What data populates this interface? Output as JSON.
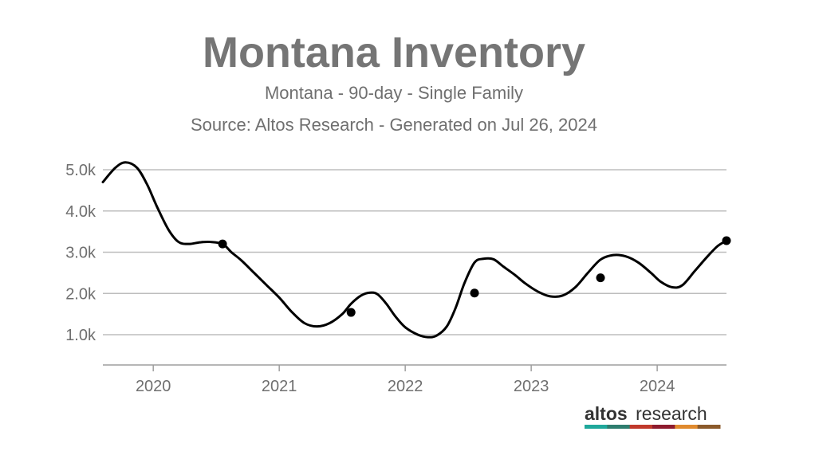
{
  "chart_data": {
    "type": "line",
    "title": "Montana Inventory",
    "subtitle": "Montana - 90-day - Single Family",
    "source": "Source: Altos Research - Generated on Jul 26, 2024",
    "xlabel": "",
    "ylabel": "",
    "x_ticks": [
      "2020",
      "2021",
      "2022",
      "2023",
      "2024"
    ],
    "y_ticks": [
      "1.0k",
      "2.0k",
      "3.0k",
      "4.0k",
      "5.0k"
    ],
    "y_tick_values": [
      1000,
      2000,
      3000,
      4000,
      5000
    ],
    "xlim": [
      2019.6,
      2024.55
    ],
    "ylim": [
      300,
      5400
    ],
    "grid": "horizontal",
    "series": [
      {
        "x": [
          2019.6,
          2019.7,
          2019.78,
          2019.87,
          2019.95,
          2020.03,
          2020.12,
          2020.2,
          2020.28,
          2020.37,
          2020.45,
          2020.55,
          2020.62,
          2020.7,
          2020.8,
          2020.9,
          2021.0,
          2021.1,
          2021.2,
          2021.3,
          2021.4,
          2021.5,
          2021.57,
          2021.65,
          2021.72,
          2021.78,
          2021.85,
          2021.92,
          2022.0,
          2022.1,
          2022.18,
          2022.25,
          2022.33,
          2022.4,
          2022.47,
          2022.55,
          2022.62,
          2022.7,
          2022.78,
          2022.87,
          2022.95,
          2023.05,
          2023.15,
          2023.25,
          2023.35,
          2023.45,
          2023.55,
          2023.65,
          2023.75,
          2023.85,
          2023.95,
          2024.03,
          2024.12,
          2024.2,
          2024.3,
          2024.4,
          2024.48,
          2024.55
        ],
        "y": [
          4700,
          5050,
          5180,
          5050,
          4650,
          4100,
          3550,
          3250,
          3200,
          3240,
          3250,
          3200,
          3000,
          2800,
          2500,
          2200,
          1900,
          1550,
          1280,
          1200,
          1280,
          1500,
          1750,
          1950,
          2020,
          1980,
          1750,
          1450,
          1180,
          1000,
          940,
          980,
          1200,
          1650,
          2250,
          2750,
          2840,
          2830,
          2650,
          2450,
          2250,
          2050,
          1930,
          1950,
          2150,
          2500,
          2820,
          2930,
          2900,
          2750,
          2500,
          2280,
          2150,
          2200,
          2550,
          2900,
          3150,
          3280
        ]
      }
    ],
    "markers": {
      "x": [
        2020.55,
        2021.57,
        2022.55,
        2023.55,
        2024.55
      ],
      "y": [
        3200,
        1540,
        2010,
        2380,
        3280
      ]
    }
  },
  "logo": {
    "text_bold": "altos",
    "text_regular": "research",
    "stripe_colors": [
      "#1fa89b",
      "#2e7d6e",
      "#c0392b",
      "#8e1b2e",
      "#e08a2e",
      "#8b5a2b"
    ]
  }
}
